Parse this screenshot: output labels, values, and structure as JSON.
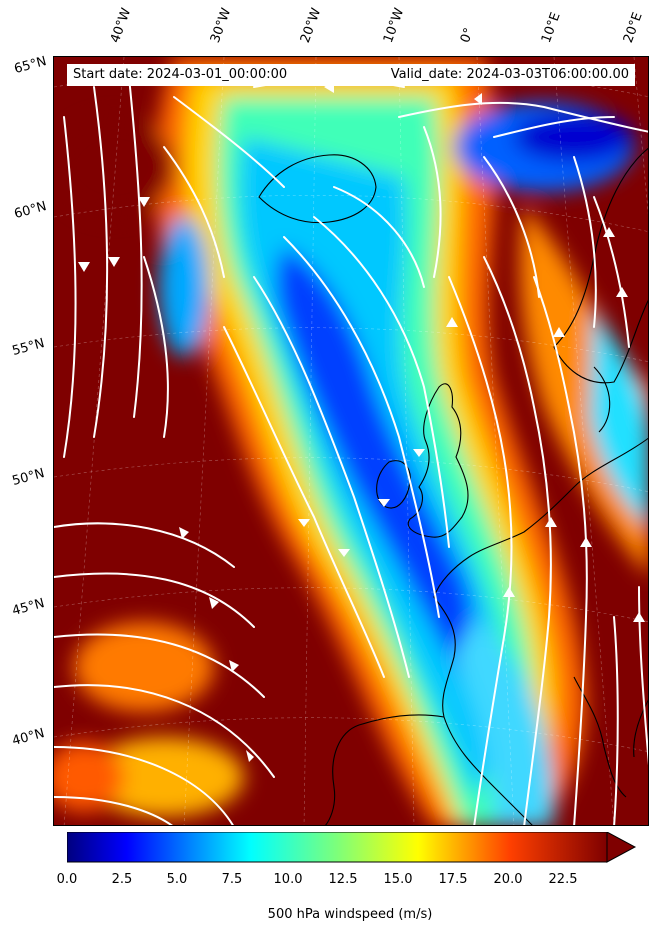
{
  "header": {
    "start_date": "Start date: 2024-03-01_00:00:00",
    "valid_date": "Valid_date: 2024-03-03T06:00:00.00"
  },
  "longitude_labels": [
    "40°W",
    "30°W",
    "20°W",
    "10°W",
    "0°",
    "10°E",
    "20°E"
  ],
  "latitude_labels": [
    "65°N",
    "60°N",
    "55°N",
    "50°N",
    "45°N",
    "40°N"
  ],
  "colorbar": {
    "label": "500 hPa windspeed (m/s)",
    "ticks": [
      "0.0",
      "2.5",
      "5.0",
      "7.5",
      "10.0",
      "12.5",
      "15.0",
      "17.5",
      "20.0",
      "22.5"
    ],
    "range": [
      0,
      25
    ],
    "colormap": "jet",
    "extend": "max"
  },
  "colors": {
    "max_speed": "#7f0000",
    "min_speed": "#00007f",
    "streamlines": "#ffffff",
    "coastlines": "#000000"
  }
}
